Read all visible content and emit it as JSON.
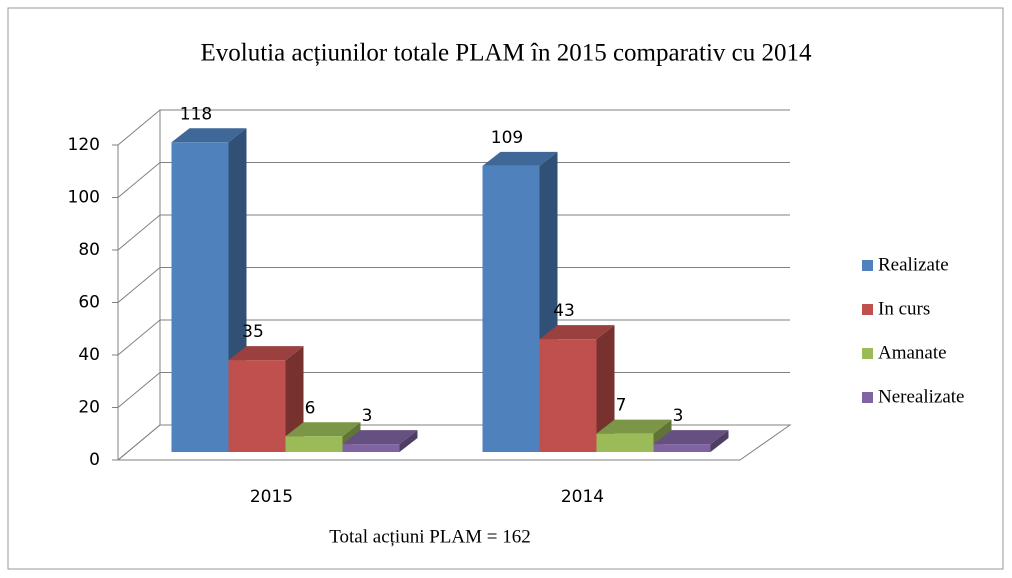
{
  "chart_data": {
    "type": "bar3d",
    "title": "Evolutia acțiunilor totale PLAM în 2015 comparativ cu 2014",
    "x_label": "Total acțiuni PLAM = 162",
    "categories": [
      "2015",
      "2014"
    ],
    "series": [
      {
        "name": "Realizate",
        "color": "#4f81bd",
        "values": [
          118,
          109
        ]
      },
      {
        "name": "In curs",
        "color": "#c0504d",
        "values": [
          35,
          43
        ]
      },
      {
        "name": "Amanate",
        "color": "#9bbb59",
        "values": [
          6,
          7
        ]
      },
      {
        "name": "Nerealizate",
        "color": "#8064a2",
        "values": [
          3,
          3
        ]
      }
    ],
    "ylim": [
      0,
      120
    ],
    "yticks": [
      0,
      20,
      40,
      60,
      80,
      100,
      120
    ],
    "grid": true,
    "legend": "right"
  }
}
